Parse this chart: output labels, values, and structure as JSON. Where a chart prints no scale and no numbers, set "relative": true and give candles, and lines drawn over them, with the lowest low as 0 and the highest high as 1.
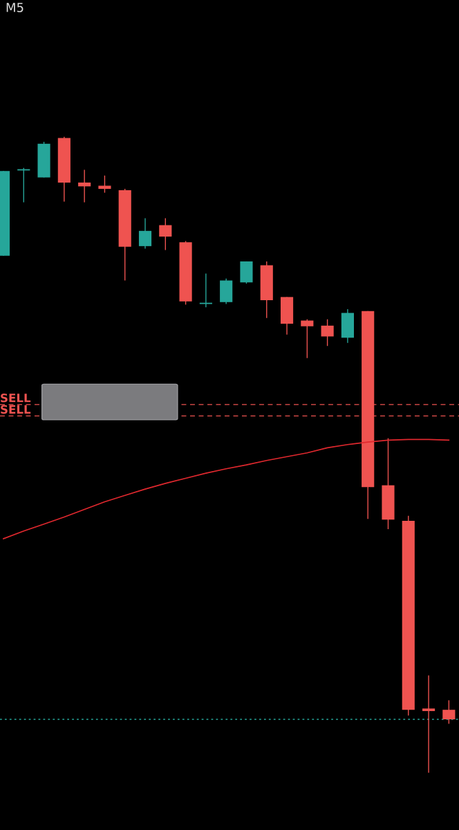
{
  "chart_data": {
    "type": "candlestick",
    "title": "M5",
    "relative": true,
    "categories": [
      null,
      null,
      null,
      null,
      null,
      null,
      null,
      null,
      null,
      null,
      null,
      null,
      null,
      null,
      null,
      null,
      null,
      null,
      null,
      null,
      null,
      null,
      null
    ],
    "ohlc": [
      [
        0.813,
        0.946,
        0.813,
        0.946
      ],
      [
        0.947,
        0.951,
        0.897,
        0.949
      ],
      [
        0.936,
        0.992,
        0.936,
        0.989
      ],
      [
        0.998,
        1.0,
        0.898,
        0.928
      ],
      [
        0.928,
        0.948,
        0.897,
        0.922
      ],
      [
        0.923,
        0.939,
        0.912,
        0.918
      ],
      [
        0.916,
        0.918,
        0.774,
        0.827
      ],
      [
        0.828,
        0.872,
        0.824,
        0.852
      ],
      [
        0.861,
        0.872,
        0.822,
        0.843
      ],
      [
        0.834,
        0.836,
        0.736,
        0.741
      ],
      [
        0.737,
        0.785,
        0.732,
        0.739
      ],
      [
        0.74,
        0.777,
        0.737,
        0.774
      ],
      [
        0.771,
        0.804,
        0.769,
        0.804
      ],
      [
        0.798,
        0.804,
        0.715,
        0.743
      ],
      [
        0.748,
        0.748,
        0.689,
        0.706
      ],
      [
        0.711,
        0.713,
        0.652,
        0.702
      ],
      [
        0.703,
        0.713,
        0.671,
        0.686
      ],
      [
        0.684,
        0.729,
        0.676,
        0.723
      ],
      [
        0.726,
        0.726,
        0.399,
        0.449
      ],
      [
        0.452,
        0.526,
        0.383,
        0.398
      ],
      [
        0.396,
        0.404,
        0.09,
        0.099
      ],
      [
        0.101,
        0.153,
        0.0,
        0.097
      ],
      [
        0.099,
        0.114,
        0.077,
        0.084
      ]
    ],
    "colors": [
      "#26a69a",
      "#26a69a",
      "#26a69a",
      "#ef5350",
      "#ef5350",
      "#ef5350",
      "#ef5350",
      "#26a69a",
      "#ef5350",
      "#ef5350",
      "#26a69a",
      "#26a69a",
      "#26a69a",
      "#ef5350",
      "#ef5350",
      "#ef5350",
      "#ef5350",
      "#26a69a",
      "#ef5350",
      "#ef5350",
      "#ef5350",
      "#ef5350",
      "#ef5350"
    ],
    "series": [
      {
        "type": "line",
        "color": "#e0282e",
        "values": [
          0.368,
          0.38,
          0.391,
          0.402,
          0.414,
          0.426,
          0.436,
          0.446,
          0.455,
          0.463,
          0.471,
          0.478,
          0.484,
          0.491,
          0.497,
          0.503,
          0.511,
          0.516,
          0.52,
          0.523,
          0.524,
          0.524,
          0.523
        ]
      }
    ],
    "ref_lines": [
      {
        "axis": "y",
        "value": 0.579,
        "label": "SELL",
        "color": "#ef5350",
        "line_style": "dashed"
      },
      {
        "axis": "y",
        "value": 0.561,
        "label": "SELL",
        "color": "#ef5350",
        "line_style": "dashed"
      },
      {
        "axis": "y",
        "value": 0.084,
        "color": "#26a69a",
        "line_style": "dotted"
      }
    ]
  }
}
